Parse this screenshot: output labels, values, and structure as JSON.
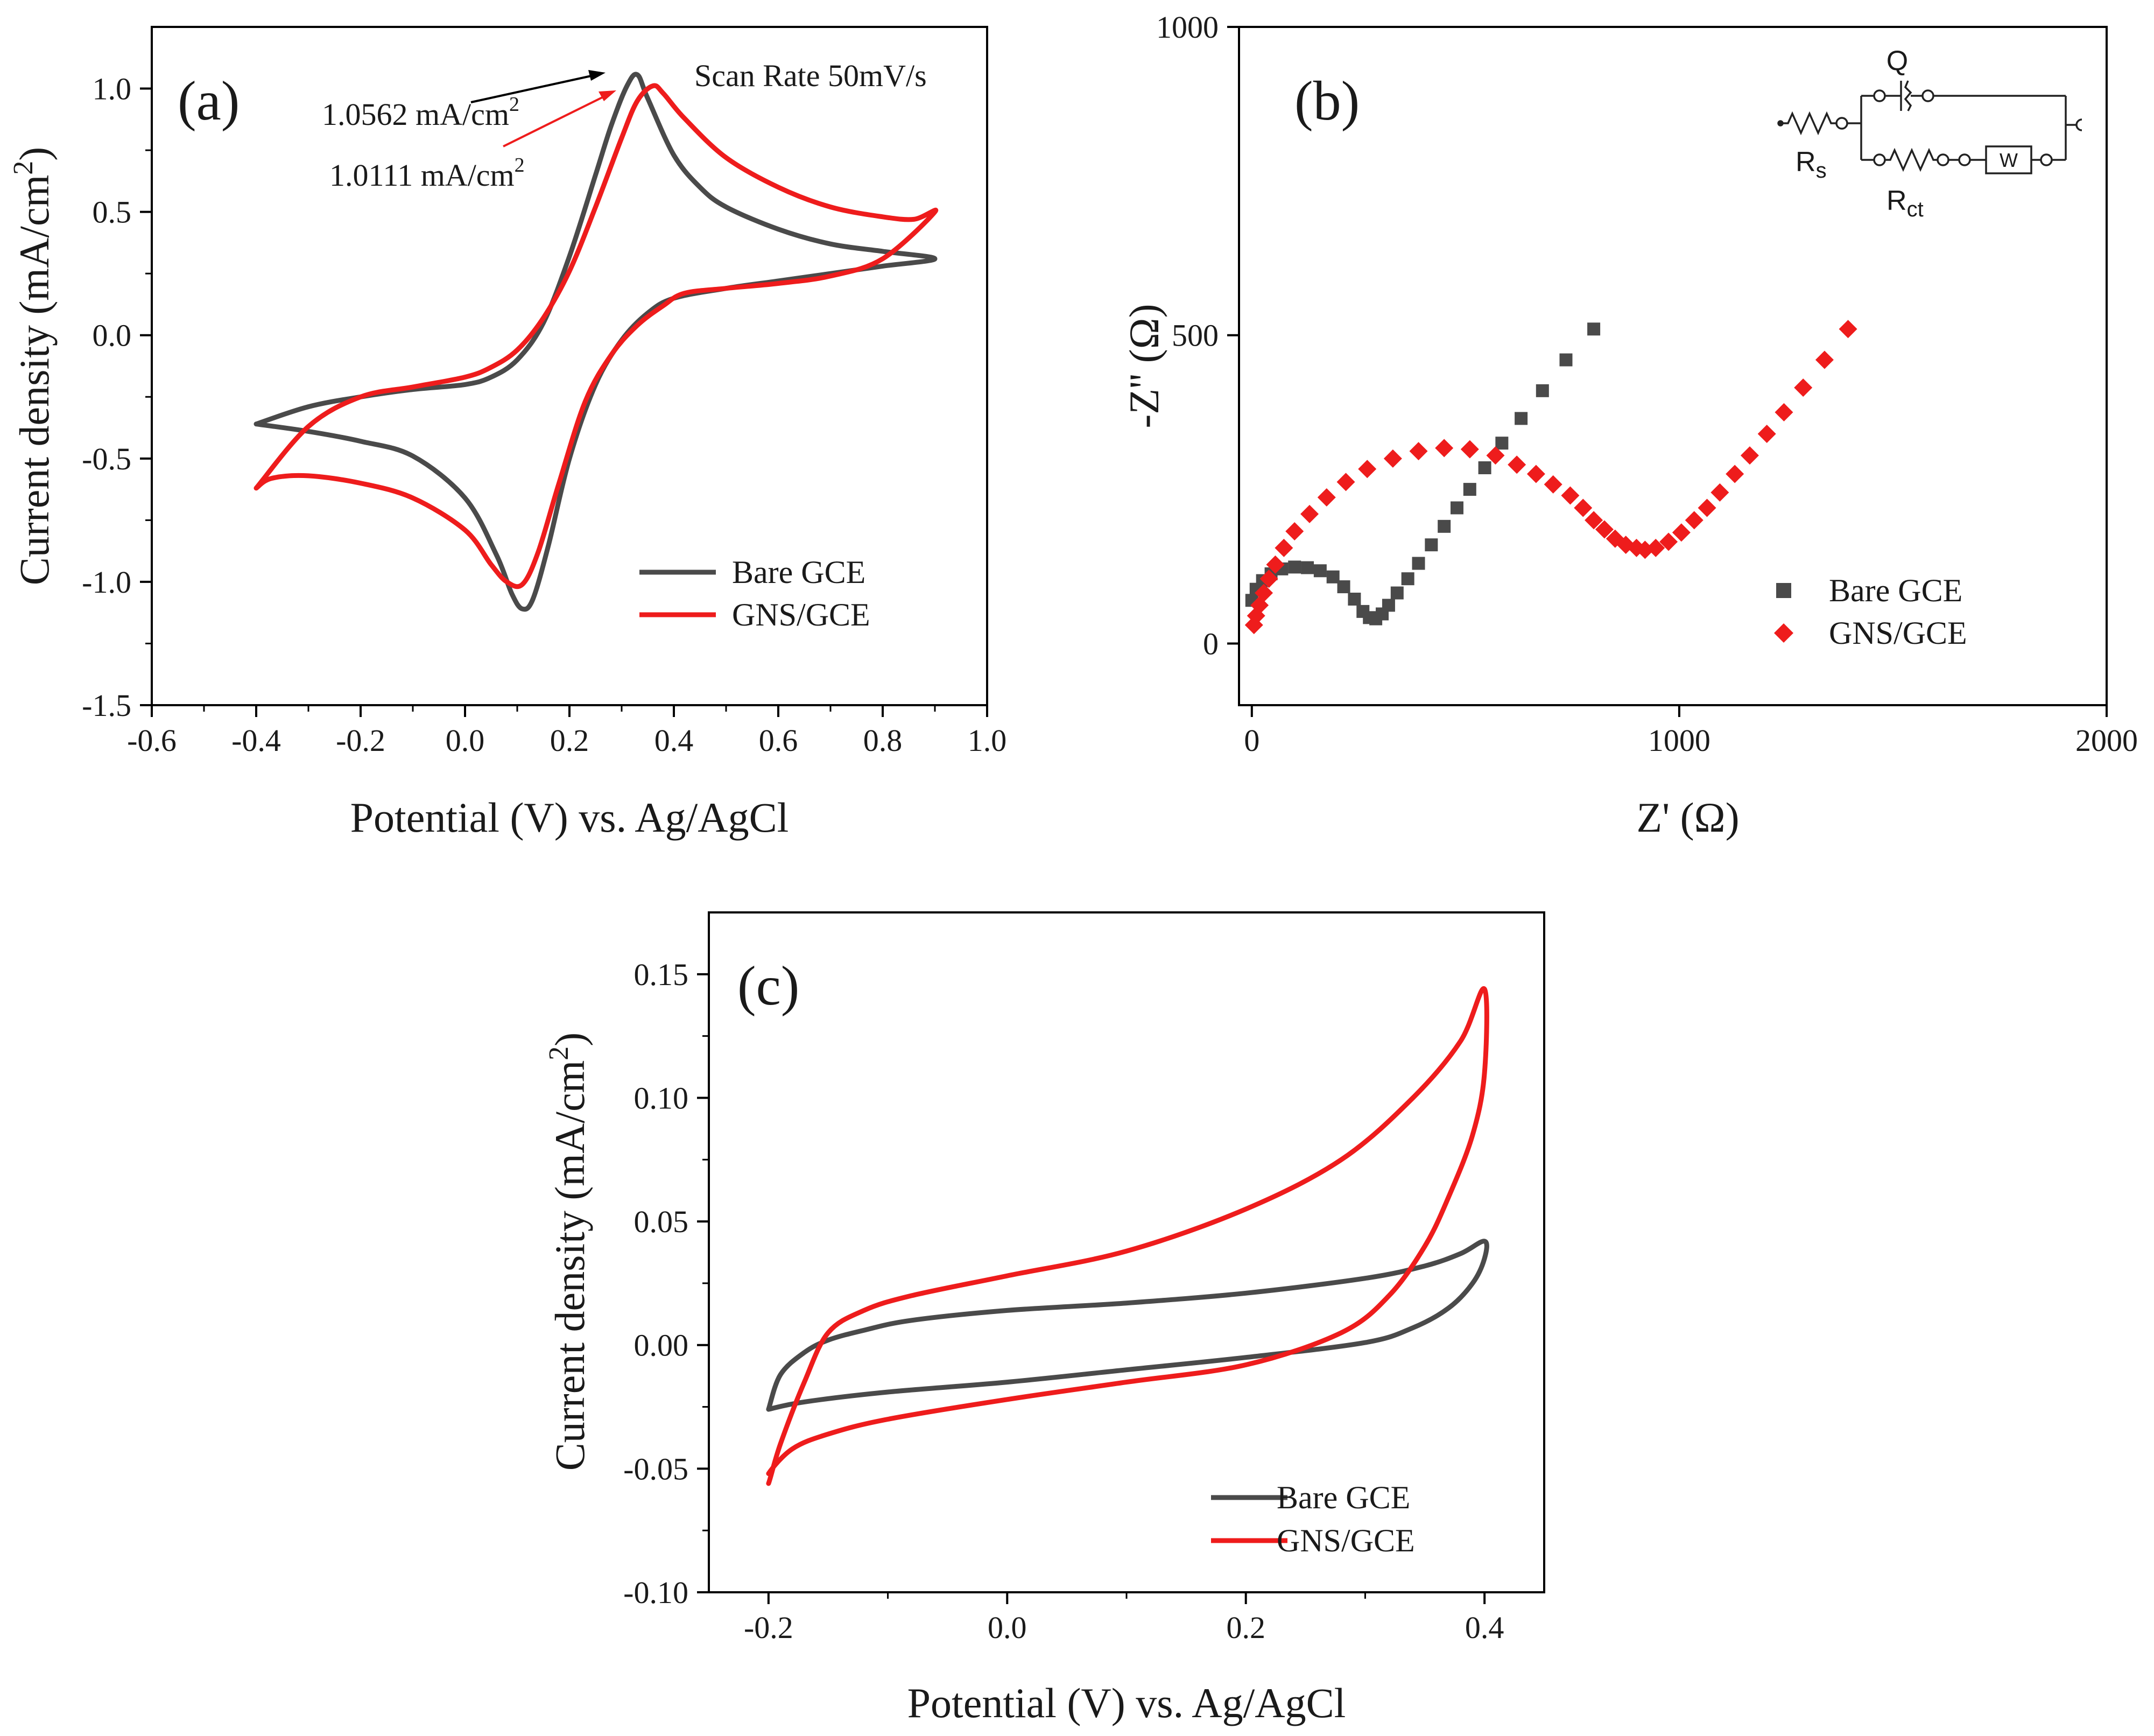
{
  "figure": {
    "panels": [
      "(a)",
      "(b)",
      "(c)"
    ]
  },
  "colors": {
    "bare": "#4a4a4a",
    "gns": "#ee1c1c",
    "axis": "#000000",
    "text": "#1a1a1a"
  },
  "circuit": {
    "q_label": "Q",
    "rs_main": "R",
    "rs_sub": "s",
    "rct_main": "R",
    "rct_sub": "ct",
    "w_label": "W"
  },
  "chart_data": [
    {
      "panel": "(a)",
      "type": "line",
      "xlabel": "Potential (V) vs. Ag/AgCl",
      "ylabel_main": "Current density (mA/cm",
      "ylabel_sup": "2",
      "ylabel_close": ")",
      "xlim": [
        -0.6,
        1.0
      ],
      "ylim": [
        -1.5,
        1.25
      ],
      "xticks": [
        -0.6,
        -0.4,
        -0.2,
        0.0,
        0.2,
        0.4,
        0.6,
        0.8,
        1.0
      ],
      "xtick_labels": [
        "-0.6",
        "-0.4",
        "-0.2",
        "0.0",
        "0.2",
        "0.4",
        "0.6",
        "0.8",
        "1.0"
      ],
      "yticks": [
        -1.5,
        -1.0,
        -0.5,
        0.0,
        0.5,
        1.0
      ],
      "ytick_labels": [
        "-1.5",
        "-1.0",
        "-0.5",
        "0.0",
        "0.5",
        "1.0"
      ],
      "annotations": {
        "scan_rate": "Scan Rate 50mV/s",
        "peak_bare_value": "1.0562 mA/cm",
        "peak_gns_value": "1.0111 mA/cm",
        "unit_sup": "2"
      },
      "legend": {
        "position": "bottom-right",
        "entries": [
          "Bare GCE",
          "GNS/GCE"
        ]
      },
      "series": [
        {
          "name": "Bare GCE",
          "x": [
            -0.4,
            -0.3,
            -0.2,
            -0.1,
            0.0,
            0.05,
            0.1,
            0.15,
            0.2,
            0.25,
            0.28,
            0.31,
            0.33,
            0.35,
            0.4,
            0.45,
            0.5,
            0.6,
            0.7,
            0.8,
            0.9,
            0.8,
            0.7,
            0.6,
            0.5,
            0.4,
            0.35,
            0.3,
            0.25,
            0.2,
            0.16,
            0.13,
            0.11,
            0.09,
            0.06,
            0.0,
            -0.1,
            -0.2,
            -0.3,
            -0.4
          ],
          "y": [
            -0.36,
            -0.29,
            -0.25,
            -0.22,
            -0.2,
            -0.17,
            -0.1,
            0.05,
            0.32,
            0.65,
            0.85,
            1.01,
            1.0562,
            0.96,
            0.73,
            0.6,
            0.52,
            0.43,
            0.37,
            0.34,
            0.31,
            0.28,
            0.25,
            0.22,
            0.19,
            0.15,
            0.09,
            -0.02,
            -0.2,
            -0.5,
            -0.85,
            -1.07,
            -1.11,
            -1.05,
            -0.89,
            -0.66,
            -0.49,
            -0.43,
            -0.39,
            -0.36
          ]
        },
        {
          "name": "GNS/GCE",
          "x": [
            -0.4,
            -0.3,
            -0.2,
            -0.1,
            0.0,
            0.05,
            0.1,
            0.15,
            0.2,
            0.25,
            0.3,
            0.33,
            0.36,
            0.38,
            0.42,
            0.5,
            0.6,
            0.7,
            0.8,
            0.86,
            0.9,
            0.8,
            0.7,
            0.6,
            0.5,
            0.42,
            0.38,
            0.33,
            0.28,
            0.23,
            0.18,
            0.14,
            0.11,
            0.08,
            0.05,
            0.0,
            -0.1,
            -0.2,
            -0.3,
            -0.37,
            -0.4
          ],
          "y": [
            -0.62,
            -0.37,
            -0.25,
            -0.21,
            -0.17,
            -0.13,
            -0.06,
            0.07,
            0.26,
            0.52,
            0.8,
            0.95,
            1.0111,
            0.98,
            0.88,
            0.72,
            0.6,
            0.52,
            0.48,
            0.47,
            0.5,
            0.31,
            0.24,
            0.21,
            0.19,
            0.17,
            0.12,
            0.04,
            -0.08,
            -0.27,
            -0.6,
            -0.88,
            -1.01,
            -1.0,
            -0.93,
            -0.79,
            -0.66,
            -0.6,
            -0.57,
            -0.58,
            -0.62
          ]
        }
      ]
    },
    {
      "panel": "(b)",
      "type": "scatter",
      "xlabel": "Z' (Ω)",
      "ylabel": "-Z'' (Ω)",
      "xlim": [
        -30,
        2000
      ],
      "ylim": [
        -100,
        1000
      ],
      "xticks": [
        0,
        1000,
        2000
      ],
      "xtick_labels": [
        "0",
        "1000",
        "2000"
      ],
      "yticks": [
        0,
        500,
        1000
      ],
      "ytick_labels": [
        "0",
        "500",
        "1000"
      ],
      "legend": {
        "position": "right",
        "entries": [
          "Bare GCE",
          "GNS/GCE"
        ]
      },
      "series": [
        {
          "name": "Bare GCE",
          "marker": "square",
          "x": [
            0,
            10,
            25,
            45,
            70,
            100,
            130,
            160,
            190,
            215,
            240,
            260,
            275,
            290,
            305,
            320,
            340,
            365,
            390,
            420,
            450,
            480,
            510,
            545,
            585,
            630,
            680,
            735,
            800
          ],
          "y": [
            70,
            88,
            102,
            113,
            121,
            124,
            123,
            118,
            108,
            92,
            72,
            52,
            42,
            40,
            48,
            62,
            82,
            105,
            130,
            160,
            190,
            220,
            250,
            285,
            325,
            365,
            410,
            460,
            510
          ]
        },
        {
          "name": "GNS/GCE",
          "marker": "diamond",
          "x": [
            5,
            10,
            18,
            28,
            40,
            55,
            75,
            100,
            135,
            175,
            220,
            270,
            330,
            390,
            450,
            510,
            570,
            620,
            665,
            705,
            745,
            775,
            800,
            825,
            850,
            875,
            900,
            920,
            945,
            975,
            1005,
            1035,
            1065,
            1095,
            1130,
            1165,
            1205,
            1245,
            1290,
            1340,
            1395
          ],
          "y": [
            30,
            45,
            62,
            82,
            105,
            128,
            155,
            182,
            210,
            237,
            262,
            283,
            300,
            312,
            317,
            315,
            305,
            290,
            275,
            258,
            240,
            220,
            200,
            185,
            170,
            160,
            155,
            152,
            155,
            165,
            180,
            200,
            220,
            245,
            275,
            305,
            340,
            375,
            415,
            460,
            510
          ]
        }
      ]
    },
    {
      "panel": "(c)",
      "type": "line",
      "xlabel": "Potential (V) vs. Ag/AgCl",
      "ylabel_main": "Current density (mA/cm",
      "ylabel_sup": "2",
      "ylabel_close": ")",
      "xlim": [
        -0.25,
        0.45
      ],
      "ylim": [
        -0.1,
        0.175
      ],
      "xticks": [
        -0.2,
        0.0,
        0.2,
        0.4
      ],
      "xtick_labels": [
        "-0.2",
        "0.0",
        "0.2",
        "0.4"
      ],
      "yticks": [
        -0.1,
        -0.05,
        0.0,
        0.05,
        0.1,
        0.15
      ],
      "ytick_labels": [
        "-0.10",
        "-0.05",
        "0.00",
        "0.05",
        "0.10",
        "0.15"
      ],
      "legend": {
        "position": "bottom-right",
        "entries": [
          "Bare GCE",
          "GNS/GCE"
        ]
      },
      "series": [
        {
          "name": "Bare GCE",
          "x": [
            -0.2,
            -0.19,
            -0.17,
            -0.15,
            -0.12,
            -0.08,
            0.0,
            0.1,
            0.2,
            0.3,
            0.35,
            0.38,
            0.4,
            0.4,
            0.39,
            0.37,
            0.34,
            0.3,
            0.2,
            0.1,
            0.0,
            -0.1,
            -0.17,
            -0.2
          ],
          "y": [
            -0.026,
            -0.012,
            -0.003,
            0.002,
            0.006,
            0.01,
            0.014,
            0.017,
            0.021,
            0.027,
            0.032,
            0.037,
            0.042,
            0.035,
            0.025,
            0.015,
            0.007,
            0.001,
            -0.005,
            -0.01,
            -0.015,
            -0.019,
            -0.023,
            -0.026
          ]
        },
        {
          "name": "GNS/GCE",
          "x": [
            -0.2,
            -0.19,
            -0.17,
            -0.15,
            -0.12,
            -0.08,
            0.0,
            0.1,
            0.2,
            0.28,
            0.34,
            0.38,
            0.4,
            0.4,
            0.39,
            0.37,
            0.35,
            0.32,
            0.28,
            0.2,
            0.1,
            0.0,
            -0.1,
            -0.15,
            -0.18,
            -0.2
          ],
          "y": [
            -0.056,
            -0.04,
            -0.015,
            0.005,
            0.014,
            0.02,
            0.028,
            0.038,
            0.055,
            0.075,
            0.1,
            0.123,
            0.144,
            0.11,
            0.085,
            0.06,
            0.04,
            0.02,
            0.005,
            -0.008,
            -0.015,
            -0.022,
            -0.03,
            -0.036,
            -0.042,
            -0.052
          ]
        }
      ]
    }
  ]
}
